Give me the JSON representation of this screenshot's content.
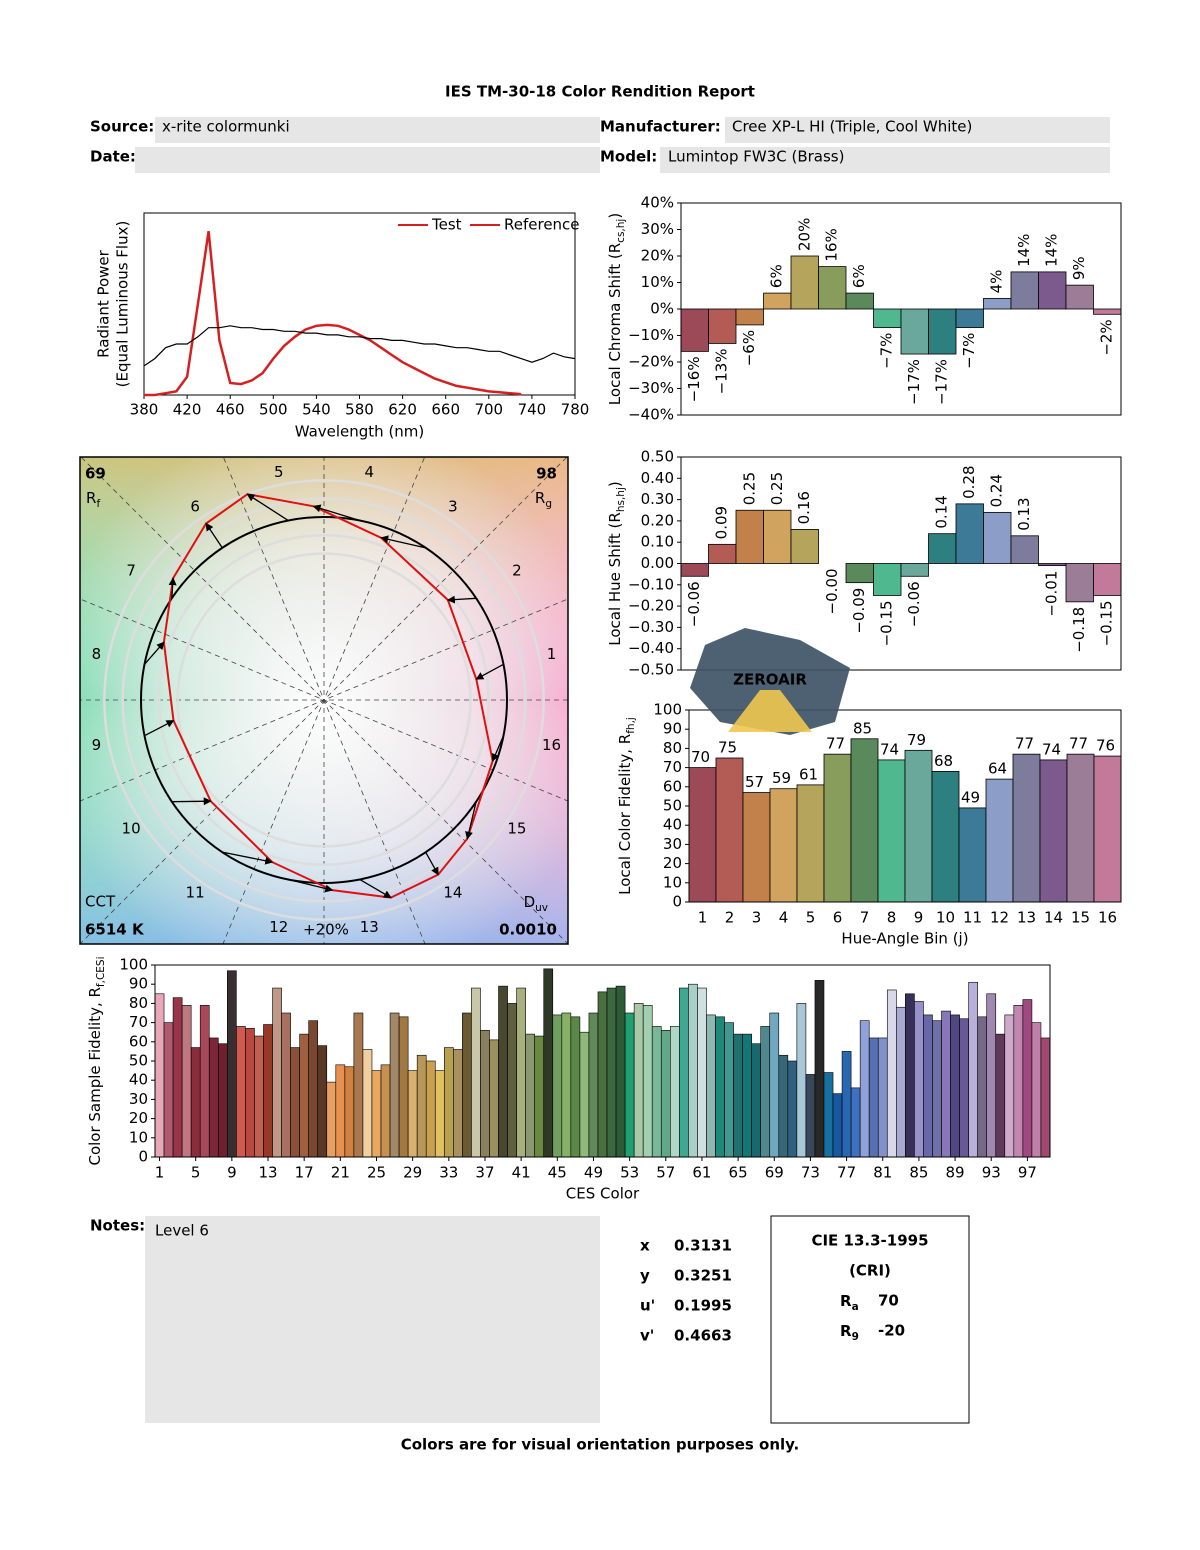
{
  "report": {
    "title": "IES TM-30-18 Color Rendition Report",
    "source_label": "Source:",
    "source": "x-rite colormunki",
    "manufacturer_label": "Manufacturer:",
    "manufacturer": "Cree XP-L HI (Triple, Cool White)",
    "date_label": "Date:",
    "model_label": "Model:",
    "model": "Lumintop FW3C (Brass)",
    "notes_label": "Notes:",
    "notes": "Level 6",
    "chromaticity": [
      {
        "label": "x",
        "value": 0.3131
      },
      {
        "label": "y",
        "value": 0.3251
      },
      {
        "label": "u'",
        "value": 0.1995
      },
      {
        "label": "v'",
        "value": 0.4663
      }
    ],
    "cri": {
      "title": "CIE 13.3-1995",
      "subtitle": "(CRI)",
      "ra": {
        "text": "R",
        "sub": "a",
        "value": 70
      },
      "r9": {
        "text": "R",
        "sub": "9",
        "value": -20
      }
    },
    "footer": "Colors are for visual orientation purposes only.",
    "watermark": "ZEROAIR"
  },
  "chart_data": [
    {
      "type": "line",
      "xlabel": "Wavelength (nm)",
      "ylabel": [
        "Radiant Power",
        "(Equal Luminous Flux)"
      ],
      "x": [
        380,
        390,
        400,
        410,
        420,
        430,
        440,
        450,
        460,
        470,
        480,
        490,
        500,
        510,
        520,
        530,
        540,
        550,
        560,
        570,
        580,
        590,
        600,
        610,
        620,
        630,
        640,
        650,
        660,
        670,
        680,
        690,
        700,
        710,
        720,
        730,
        740,
        750,
        760,
        770,
        780
      ],
      "series": [
        {
          "name": "Test",
          "color": "#d62020",
          "values": [
            0,
            0,
            0.01,
            0.02,
            0.1,
            0.5,
            0.9,
            0.3,
            0.066,
            0.06,
            0.08,
            0.12,
            0.2,
            0.27,
            0.32,
            0.36,
            0.38,
            0.385,
            0.38,
            0.36,
            0.33,
            0.3,
            0.26,
            0.22,
            0.18,
            0.15,
            0.12,
            0.09,
            0.07,
            0.05,
            0.04,
            0.03,
            0.02,
            0.015,
            0.01,
            0.005,
            null,
            null,
            null,
            null,
            null
          ]
        },
        {
          "name": "Reference",
          "color": "#000000",
          "values": [
            0.16,
            0.2,
            0.26,
            0.28,
            0.28,
            0.32,
            0.37,
            0.37,
            0.38,
            0.37,
            0.37,
            0.36,
            0.36,
            0.35,
            0.35,
            0.34,
            0.34,
            0.33,
            0.33,
            0.32,
            0.32,
            0.31,
            0.31,
            0.3,
            0.3,
            0.29,
            0.28,
            0.28,
            0.27,
            0.26,
            0.26,
            0.25,
            0.24,
            0.24,
            0.22,
            0.2,
            0.18,
            0.2,
            0.23,
            0.21,
            0.2
          ]
        }
      ],
      "xlim": [
        380,
        780
      ],
      "xticks": [
        380,
        420,
        460,
        500,
        540,
        580,
        620,
        660,
        700,
        740,
        780
      ],
      "ylim": [
        0,
        1
      ]
    },
    {
      "type": "vector",
      "rf": 69,
      "rf_label": {
        "text": "R",
        "sub": "f"
      },
      "rg": 98,
      "rg_label": {
        "text": "R",
        "sub": "g"
      },
      "cct_label": "CCT",
      "cct": "6514 K",
      "duv_label": {
        "text": "D",
        "sub": "uv"
      },
      "duv": "0.0010",
      "ring_label": "+20%"
    },
    {
      "type": "bar",
      "ylabel": {
        "text": "Local Chroma Shift (R",
        "sub": "cs,hj",
        "tail": ")"
      },
      "values": [
        -16,
        -13,
        -6,
        6,
        20,
        16,
        6,
        -7,
        -17,
        -17,
        -7,
        4,
        14,
        14,
        9,
        -2
      ],
      "value_labels": [
        "−16%",
        "−13%",
        "−6%",
        "6%",
        "20%",
        "16%",
        "6%",
        "−7%",
        "−17%",
        "−17%",
        "−7%",
        "4%",
        "14%",
        "14%",
        "9%",
        "−2%"
      ],
      "colors": [
        "#9c4a58",
        "#b25c55",
        "#c2804b",
        "#d0a35e",
        "#b5a45c",
        "#889d5c",
        "#5a8a5c",
        "#4fb88f",
        "#6aa89c",
        "#2e8080",
        "#3d7a97",
        "#8c9ec8",
        "#7d7c9c",
        "#7d5a8d",
        "#9b7d98",
        "#c37a9a"
      ],
      "ylim": [
        -40,
        40
      ],
      "yticks": [
        {
          "value": -40,
          "label": "−40%"
        },
        {
          "value": -30,
          "label": "−30%"
        },
        {
          "value": -20,
          "label": "−20%"
        },
        {
          "value": -10,
          "label": "−10%"
        },
        {
          "value": 0,
          "label": "0%"
        },
        {
          "value": 10,
          "label": "10%"
        },
        {
          "value": 20,
          "label": "20%"
        },
        {
          "value": 30,
          "label": "30%"
        },
        {
          "value": 40,
          "label": "40%"
        }
      ]
    },
    {
      "type": "bar",
      "ylabel": {
        "text": "Local Hue Shift (R",
        "sub": "hs,hj",
        "tail": ")"
      },
      "values": [
        -0.06,
        0.09,
        0.25,
        0.25,
        0.16,
        -0.0,
        -0.09,
        -0.15,
        -0.06,
        0.14,
        0.28,
        0.24,
        0.13,
        -0.01,
        -0.18,
        -0.15
      ],
      "value_labels": [
        "−0.06",
        "0.09",
        "0.25",
        "0.25",
        "0.16",
        "−0.00",
        "−0.09",
        "−0.15",
        "−0.06",
        "0.14",
        "0.28",
        "0.24",
        "0.13",
        "−0.01",
        "−0.18",
        "−0.15"
      ],
      "colors": [
        "#9c4a58",
        "#b25c55",
        "#c2804b",
        "#d0a35e",
        "#b5a45c",
        "#889d5c",
        "#5a8a5c",
        "#4fb88f",
        "#6aa89c",
        "#2e8080",
        "#3d7a97",
        "#8c9ec8",
        "#7d7c9c",
        "#7d5a8d",
        "#9b7d98",
        "#c37a9a"
      ],
      "ylim": [
        -0.5,
        0.5
      ],
      "yticks": [
        {
          "value": -0.5,
          "label": "−0.50"
        },
        {
          "value": -0.4,
          "label": "−0.40"
        },
        {
          "value": -0.3,
          "label": "−0.30"
        },
        {
          "value": -0.2,
          "label": "−0.20"
        },
        {
          "value": -0.1,
          "label": "−0.10"
        },
        {
          "value": 0,
          "label": "0.00"
        },
        {
          "value": 0.1,
          "label": "0.10"
        },
        {
          "value": 0.2,
          "label": "0.20"
        },
        {
          "value": 0.3,
          "label": "0.30"
        },
        {
          "value": 0.4,
          "label": "0.40"
        },
        {
          "value": 0.5,
          "label": "0.50"
        }
      ]
    },
    {
      "type": "bar",
      "xlabel": "Hue-Angle Bin (j)",
      "ylabel": {
        "text": "Local Color Fidelity, R",
        "sub": "fh,j"
      },
      "categories": [
        "1",
        "2",
        "3",
        "4",
        "5",
        "6",
        "7",
        "8",
        "9",
        "10",
        "11",
        "12",
        "13",
        "14",
        "15",
        "16"
      ],
      "values": [
        70,
        75,
        57,
        59,
        61,
        77,
        85,
        74,
        79,
        68,
        49,
        64,
        77,
        74,
        77,
        76
      ],
      "colors": [
        "#9c4a58",
        "#b25c55",
        "#c2804b",
        "#d0a35e",
        "#b5a45c",
        "#889d5c",
        "#5a8a5c",
        "#4fb88f",
        "#6aa89c",
        "#2e8080",
        "#3d7a97",
        "#8c9ec8",
        "#7d7c9c",
        "#7d5a8d",
        "#9b7d98",
        "#c37a9a"
      ],
      "ylim": [
        0,
        100
      ],
      "yticks": [
        0,
        10,
        20,
        30,
        40,
        50,
        60,
        70,
        80,
        90,
        100
      ]
    },
    {
      "type": "bar",
      "xlabel": "CES Color",
      "ylabel": {
        "text": "Color Sample Fidelity, R",
        "sub": "f,CESi"
      },
      "x": [
        1,
        2,
        3,
        4,
        5,
        6,
        7,
        8,
        9,
        10,
        11,
        12,
        13,
        14,
        15,
        16,
        17,
        18,
        19,
        20,
        21,
        22,
        23,
        24,
        25,
        26,
        27,
        28,
        29,
        30,
        31,
        32,
        33,
        34,
        35,
        36,
        37,
        38,
        39,
        40,
        41,
        42,
        43,
        44,
        45,
        46,
        47,
        48,
        49,
        50,
        51,
        52,
        53,
        54,
        55,
        56,
        57,
        58,
        59,
        60,
        61,
        62,
        63,
        64,
        65,
        66,
        67,
        68,
        69,
        70,
        71,
        72,
        73,
        74,
        75,
        76,
        77,
        78,
        79,
        80,
        81,
        82,
        83,
        84,
        85,
        86,
        87,
        88,
        89,
        90,
        91,
        92,
        93,
        94,
        95,
        96,
        97,
        98,
        99
      ],
      "values": [
        85,
        70,
        83,
        79,
        57,
        79,
        62,
        59,
        97,
        68,
        67,
        63,
        69,
        88,
        75,
        57,
        64,
        71,
        58,
        39,
        48,
        47,
        75,
        56,
        45,
        48,
        75,
        73,
        45,
        53,
        50,
        45,
        57,
        56,
        75,
        88,
        66,
        61,
        89,
        80,
        88,
        64,
        63,
        98,
        74,
        75,
        73,
        65,
        75,
        86,
        88,
        89,
        75,
        80,
        79,
        68,
        66,
        68,
        88,
        90,
        88,
        74,
        73,
        70,
        64,
        64,
        59,
        68,
        75,
        53,
        50,
        80,
        43,
        92,
        44,
        33,
        55,
        36,
        71,
        62,
        62,
        87,
        78,
        85,
        81,
        74,
        71,
        76,
        74,
        72,
        91,
        73,
        85,
        64,
        74,
        79,
        82,
        70,
        62
      ],
      "colors": [
        "#e8a8b8",
        "#b05a70",
        "#9a3448",
        "#c07880",
        "#8a2c3c",
        "#a8485a",
        "#7a2838",
        "#6e2030",
        "#383030",
        "#d05a50",
        "#b84840",
        "#c06050",
        "#9a3828",
        "#c09888",
        "#a87060",
        "#8a5038",
        "#a06040",
        "#7a4830",
        "#5a3828",
        "#e8a060",
        "#e89050",
        "#d08040",
        "#a87850",
        "#f0d0a0",
        "#e8a860",
        "#c89050",
        "#a08868",
        "#a07840",
        "#d8b070",
        "#b89858",
        "#c8a050",
        "#e0c060",
        "#b8a050",
        "#a89060",
        "#6a5a30",
        "#c8c8a8",
        "#8a8060",
        "#9a9060",
        "#484830",
        "#606040",
        "#a8b080",
        "#8a9870",
        "#6a8a40",
        "#303828",
        "#70a060",
        "#88b068",
        "#5a8848",
        "#90b878",
        "#608858",
        "#4a7040",
        "#3a6840",
        "#2e5a38",
        "#20a070",
        "#a8c8a8",
        "#a0d0b0",
        "#78b898",
        "#60a888",
        "#b0d8c8",
        "#40a890",
        "#a8d0c8",
        "#d0e0e0",
        "#90b8b0",
        "#208878",
        "#409890",
        "#207070",
        "#107878",
        "#186870",
        "#508890",
        "#70a8c0",
        "#386878",
        "#306080",
        "#a8c8d8",
        "#384858",
        "#282828",
        "#1870a0",
        "#1858a0",
        "#2868b0",
        "#4070c0",
        "#90a0d8",
        "#5870b0",
        "#8090c8",
        "#d8d8e8",
        "#a8a8d0",
        "#383058",
        "#9890c8",
        "#6868a8",
        "#7070a8",
        "#8878b8",
        "#504880",
        "#685898",
        "#b8b0d8",
        "#786888",
        "#a088b0",
        "#603858",
        "#d0a8c8",
        "#c088b0",
        "#a04880",
        "#c080a8",
        "#a04870"
      ],
      "xlim": [
        0.5,
        99.5
      ],
      "xticks": [
        1,
        5,
        9,
        13,
        17,
        21,
        25,
        29,
        33,
        37,
        41,
        45,
        49,
        53,
        57,
        61,
        65,
        69,
        73,
        77,
        81,
        85,
        89,
        93,
        97
      ],
      "ylim": [
        0,
        100
      ],
      "yticks": [
        0,
        10,
        20,
        30,
        40,
        50,
        60,
        70,
        80,
        90,
        100
      ]
    }
  ]
}
